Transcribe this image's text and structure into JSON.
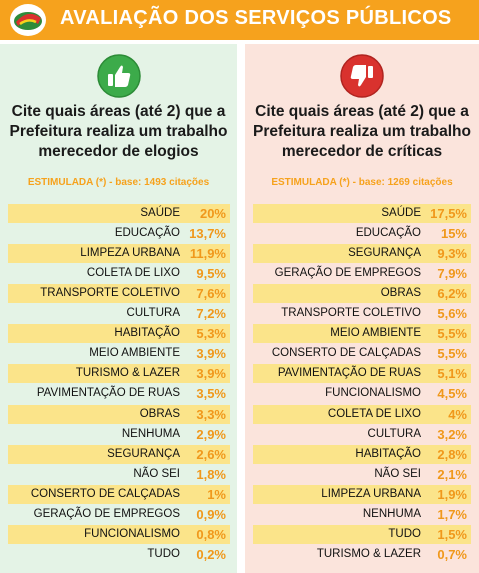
{
  "header": {
    "title": "AVALIAÇÃO DOS SERVIÇOS PÚBLICOS"
  },
  "colors": {
    "header": "#f6a21d",
    "accent": "#f0981b",
    "row_shade": "#fbe48a",
    "left_bg": "#e4f3e6",
    "right_bg": "#fbe4dc",
    "thumb_up": "#3cab4a",
    "thumb_down": "#d9322e"
  },
  "left": {
    "icon": "thumbs-up-icon",
    "question_lines": [
      "Cite quais áreas (até 2) que a",
      "Prefeitura realiza um trabalho",
      "merecedor de elogios"
    ],
    "subtitle": "ESTIMULADA (*) - base: 1493 citações"
  },
  "right": {
    "icon": "thumbs-down-icon",
    "question_lines": [
      "Cite quais áreas (até 2) que a",
      "Prefeitura realiza um trabalho",
      "merecedor de críticas"
    ],
    "subtitle": "ESTIMULADA (*) - base: 1269 citações"
  },
  "chart_data": [
    {
      "type": "table",
      "title": "Cite quais áreas (até 2) que a Prefeitura realiza um trabalho merecedor de elogios",
      "subtitle": "ESTIMULADA (*) - base: 1493 citações",
      "categories": [
        "SAÚDE",
        "EDUCAÇÃO",
        "LIMPEZA URBANA",
        "COLETA DE LIXO",
        "TRANSPORTE COLETIVO",
        "CULTURA",
        "HABITAÇÃO",
        "MEIO AMBIENTE",
        "TURISMO & LAZER",
        "PAVIMENTAÇÃO DE RUAS",
        "OBRAS",
        "NENHUMA",
        "SEGURANÇA",
        "NÃO SEI",
        "CONSERTO DE CALÇADAS",
        "GERAÇÃO DE EMPREGOS",
        "FUNCIONALISMO",
        "TUDO"
      ],
      "values": [
        20,
        13.7,
        11.9,
        9.5,
        7.6,
        7.2,
        5.3,
        3.9,
        3.9,
        3.5,
        3.3,
        2.9,
        2.6,
        1.8,
        1,
        0.9,
        0.8,
        0.2
      ],
      "value_labels": [
        "20%",
        "13,7%",
        "11,9%",
        "9,5%",
        "7,6%",
        "7,2%",
        "5,3%",
        "3,9%",
        "3,9%",
        "3,5%",
        "3,3%",
        "2,9%",
        "2,6%",
        "1,8%",
        "1%",
        "0,9%",
        "0,8%",
        "0,2%"
      ]
    },
    {
      "type": "table",
      "title": "Cite quais áreas (até 2) que a Prefeitura realiza um trabalho merecedor de críticas",
      "subtitle": "ESTIMULADA (*) - base: 1269 citações",
      "categories": [
        "SAÚDE",
        "EDUCAÇÃO",
        "SEGURANÇA",
        "GERAÇÃO DE EMPREGOS",
        "OBRAS",
        "TRANSPORTE COLETIVO",
        "MEIO AMBIENTE",
        "CONSERTO DE CALÇADAS",
        "PAVIMENTAÇÃO DE RUAS",
        "FUNCIONALISMO",
        "COLETA DE LIXO",
        "CULTURA",
        "HABITAÇÃO",
        "NÃO SEI",
        "LIMPEZA URBANA",
        "NENHUMA",
        "TUDO",
        "TURISMO & LAZER"
      ],
      "values": [
        17.5,
        15,
        9.3,
        7.9,
        6.2,
        5.6,
        5.5,
        5.5,
        5.1,
        4.5,
        4,
        3.2,
        2.8,
        2.1,
        1.9,
        1.7,
        1.5,
        0.7
      ],
      "value_labels": [
        "17,5%",
        "15%",
        "9,3%",
        "7,9%",
        "6,2%",
        "5,6%",
        "5,5%",
        "5,5%",
        "5,1%",
        "4,5%",
        "4%",
        "3,2%",
        "2,8%",
        "2,1%",
        "1,9%",
        "1,7%",
        "1,5%",
        "0,7%"
      ]
    }
  ]
}
